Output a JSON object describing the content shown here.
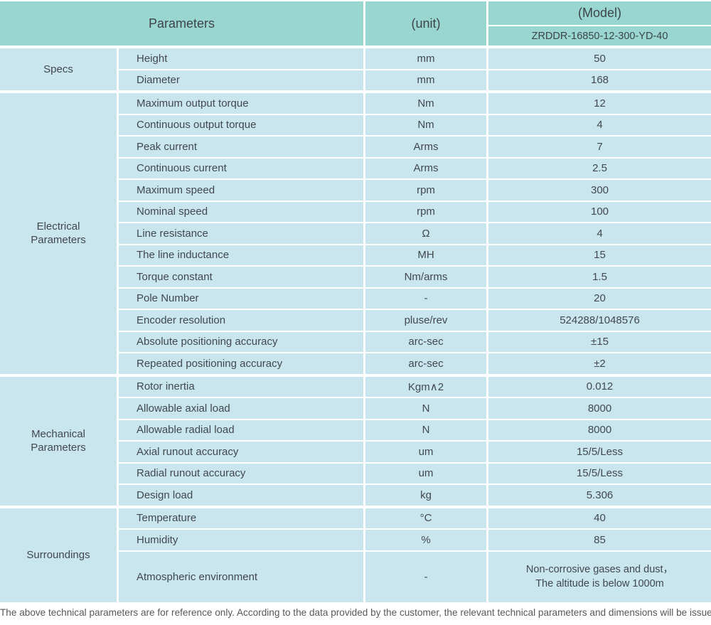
{
  "table": {
    "header": {
      "parameters_label": "Parameters",
      "unit_label": "(unit)",
      "model_label": "(Model)",
      "model_value": "ZRDDR-16850-12-300-YD-40"
    },
    "sections": [
      {
        "category": "Specs",
        "rows": [
          [
            "Height",
            "mm",
            "50"
          ],
          [
            "Diameter",
            "mm",
            "168"
          ]
        ]
      },
      {
        "category": "Electrical Parameters",
        "rows": [
          [
            "Maximum output torque",
            "Nm",
            "12"
          ],
          [
            "Continuous output torque",
            "Nm",
            "4"
          ],
          [
            "Peak current",
            "Arms",
            "7"
          ],
          [
            "Continuous current",
            "Arms",
            "2.5"
          ],
          [
            "Maximum speed",
            "rpm",
            "300"
          ],
          [
            "Nominal speed",
            "rpm",
            "100"
          ],
          [
            "Line resistance",
            "Ω",
            "4"
          ],
          [
            "The line inductance",
            "MH",
            "15"
          ],
          [
            "Torque constant",
            "Nm/arms",
            "1.5"
          ],
          [
            "Pole Number",
            "-",
            "20"
          ],
          [
            "Encoder resolution",
            "pluse/rev",
            "524288/1048576"
          ],
          [
            "Absolute positioning accuracy",
            "arc-sec",
            "±15"
          ],
          [
            "Repeated positioning accuracy",
            "arc-sec",
            "±2"
          ]
        ]
      },
      {
        "category": "Mechanical Parameters",
        "rows": [
          [
            "Rotor inertia",
            "Kgm∧2",
            "0.012"
          ],
          [
            "Allowable axial load",
            "N",
            "8000"
          ],
          [
            "Allowable radial load",
            "N",
            "8000"
          ],
          [
            "Axial runout accuracy",
            "um",
            "15/5/Less"
          ],
          [
            "Radial runout accuracy",
            "um",
            "15/5/Less"
          ],
          [
            "Design load",
            "kg",
            "5.306"
          ]
        ]
      },
      {
        "category": "Surroundings",
        "rows": [
          [
            "Temperature",
            "°C",
            "40"
          ],
          [
            "Humidity",
            "%",
            "85"
          ],
          [
            "Atmospheric environment",
            "-",
            "Non-corrosive gases and dust，\nThe altitude is below 1000m"
          ]
        ]
      }
    ],
    "footnote": "The above technical parameters are for reference only. According to the data provided by the customer, the relevant technical parameters and dimensions will be issued."
  },
  "colors": {
    "header_background": "#99d6d0",
    "cell_background": "#c9e6ef",
    "separator": "#ffffff",
    "text": "#42484d"
  }
}
